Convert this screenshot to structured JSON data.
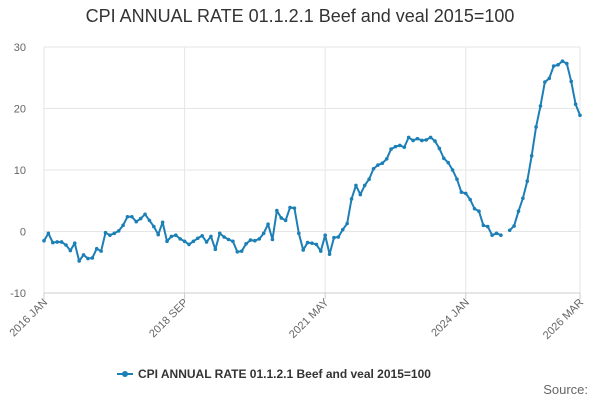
{
  "chart_data": {
    "type": "line",
    "title": "CPI ANNUAL RATE 01.1.2.1 Beef and veal 2015=100",
    "xlabel": "",
    "ylabel": "",
    "ylim": [
      -10,
      30
    ],
    "yticks": [
      -10,
      0,
      10,
      20,
      30
    ],
    "x_tick_labels": [
      "2016 JAN",
      "2018 SEP",
      "2021 MAY",
      "2024 JAN",
      "2026 MAR"
    ],
    "x_tick_indices": [
      0,
      32,
      64,
      96,
      122
    ],
    "series": [
      {
        "name": "CPI ANNUAL RATE 01.1.2.1 Beef and veal 2015=100",
        "color": "#1c7fb6",
        "start": "2016 JAN",
        "values": [
          -1.5,
          -0.3,
          -1.8,
          -1.7,
          -1.7,
          -2.2,
          -3.1,
          -1.9,
          -4.8,
          -3.8,
          -4.4,
          -4.3,
          -2.8,
          -3.2,
          -0.2,
          -0.6,
          -0.3,
          0.1,
          1.0,
          2.4,
          2.4,
          1.6,
          2.1,
          2.8,
          1.8,
          0.8,
          -0.5,
          1.5,
          -1.6,
          -0.8,
          -0.6,
          -1.2,
          -1.6,
          -2.1,
          -1.6,
          -1.1,
          -0.7,
          -1.7,
          -0.8,
          -2.9,
          -0.3,
          -0.9,
          -1.3,
          -1.6,
          -3.3,
          -3.2,
          -2.0,
          -1.4,
          -1.5,
          -1.2,
          -0.3,
          1.2,
          -1.3,
          3.4,
          2.2,
          1.8,
          3.9,
          3.8,
          -0.3,
          -3.0,
          -1.8,
          -1.9,
          -2.1,
          -3.2,
          -0.6,
          -3.7,
          -1.0,
          -0.9,
          0.3,
          1.3,
          5.3,
          7.5,
          6.0,
          7.5,
          8.5,
          10.2,
          10.8,
          11.1,
          11.8,
          13.4,
          13.8,
          14.0,
          13.7,
          15.3,
          14.8,
          15.1,
          14.8,
          14.9,
          15.3,
          14.7,
          13.5,
          11.9,
          11.2,
          10.0,
          8.5,
          6.4,
          6.2,
          5.2,
          3.7,
          3.3,
          1.0,
          0.8,
          -0.6,
          -0.3,
          -0.6,
          null,
          0.2,
          0.9,
          3.3,
          5.4,
          8.2,
          12.3,
          17.0,
          20.4,
          24.3,
          24.9,
          26.9,
          27.1,
          27.7,
          27.3,
          24.4,
          20.7,
          18.9
        ]
      }
    ],
    "legend": {
      "position": "bottom-center",
      "label": "CPI ANNUAL RATE 01.1.2.1 Beef and veal 2015=100"
    },
    "grid": true,
    "source_label": "Source:"
  }
}
